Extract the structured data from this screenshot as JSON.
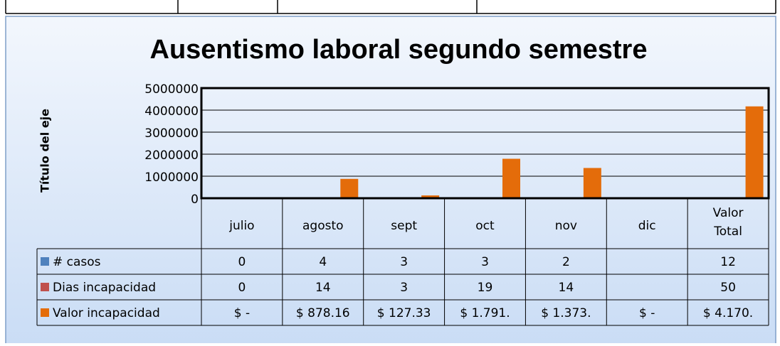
{
  "chart_data": {
    "type": "bar",
    "title": "Ausentismo laboral segundo semestre",
    "y_label": "Título del eje",
    "categories": [
      "julio",
      "agosto",
      "sept",
      "oct",
      "nov",
      "dic",
      "Valor Total"
    ],
    "series": [
      {
        "name": "# casos",
        "color": "#4f81bd",
        "values": [
          0,
          4,
          3,
          3,
          2,
          null,
          12
        ]
      },
      {
        "name": "Dias incapacidad",
        "color": "#c0504d",
        "values": [
          0,
          14,
          3,
          19,
          14,
          null,
          50
        ]
      },
      {
        "name": "Valor incapacidad",
        "color": "#e46c0a",
        "values": [
          0,
          878160,
          127330,
          1791000,
          1373000,
          0,
          4170000
        ],
        "value_labels": [
          "$ -",
          "$ 878.16",
          "$ 127.33",
          "$ 1.791.",
          "$ 1.373.",
          "$ -",
          "$ 4.170."
        ]
      }
    ],
    "ylim": [
      0,
      5000000
    ],
    "yticks": [
      0,
      1000000,
      2000000,
      3000000,
      4000000,
      5000000
    ],
    "grid": true
  }
}
